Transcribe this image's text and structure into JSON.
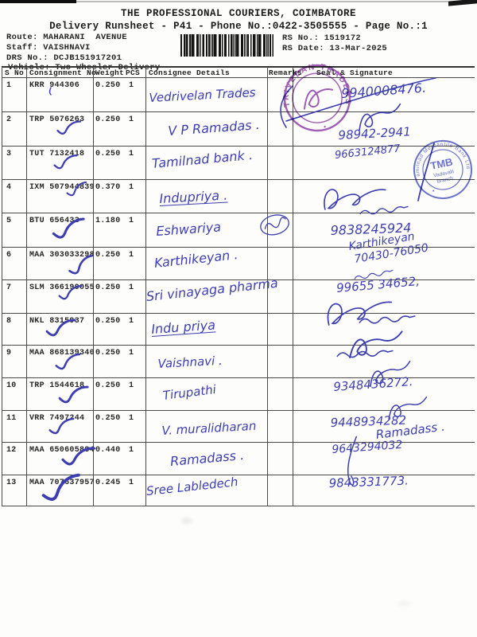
{
  "document": {
    "title": "THE PROFESSIONAL COURIERS, COIMBATORE",
    "subtitle": "Delivery Runsheet - P41 - Phone No.:0422-3505555 - Page No.:1",
    "info_left": [
      "Route: MAHARANI  AVENUE",
      "Staff: VAISHNAVI",
      "DRS No.: DCJB151917201",
      "Vehicle: Two Wheeler Delivery"
    ],
    "info_right": [
      "RS No.: 1519172",
      "RS Date: 13-Mar-2025"
    ]
  },
  "table": {
    "headers": {
      "sno": "S No",
      "consignment": "Consignment No",
      "weight": "Weight",
      "pcs": "PCS",
      "consignee": "Consignee Details",
      "remarks": "Remarks",
      "signature": "Seal & Signature"
    },
    "rows": [
      {
        "sno": "1",
        "consignment": "KRR 944306",
        "weight": "0.250",
        "pcs": "1",
        "consignee": "Vedrivelan Trades",
        "checked": false,
        "sig_lines": [
          "9940008476."
        ]
      },
      {
        "sno": "2",
        "consignment": "TRP 5076263",
        "weight": "0.250",
        "pcs": "1",
        "consignee": "V P Ramadas .",
        "checked": true,
        "sig_lines": [
          "98942-2941"
        ]
      },
      {
        "sno": "3",
        "consignment": "TUT 7132418",
        "weight": "0.250",
        "pcs": "1",
        "consignee": "Tamilnad bank .",
        "checked": true,
        "sig_lines": [
          "9663124877"
        ]
      },
      {
        "sno": "4",
        "consignment": "IXM 507944839",
        "weight": "0.370",
        "pcs": "1",
        "consignee": "Indupriya .",
        "checked": true,
        "sig_lines": []
      },
      {
        "sno": "5",
        "consignment": "BTU 656433",
        "weight": "1.180",
        "pcs": "1",
        "consignee": "Eshwariya",
        "checked": true,
        "sig_lines": [
          "9838245924"
        ]
      },
      {
        "sno": "6",
        "consignment": "MAA 303033298",
        "weight": "0.250",
        "pcs": "1",
        "consignee": "Karthikeyan .",
        "checked": true,
        "sig_lines": [
          "Karthikeyan",
          "70430-76050"
        ]
      },
      {
        "sno": "7",
        "consignment": "SLM 366199055",
        "weight": "0.250",
        "pcs": "1",
        "consignee": "Sri vinayaga pharma",
        "checked": true,
        "sig_lines": [
          "99655 34652,"
        ]
      },
      {
        "sno": "8",
        "consignment": "NKL 8315937",
        "weight": "0.250",
        "pcs": "1",
        "consignee": "Indu priya",
        "checked": true,
        "sig_lines": []
      },
      {
        "sno": "9",
        "consignment": "MAA 868139340",
        "weight": "0.250",
        "pcs": "1",
        "consignee": "Vaishnavi .",
        "checked": true,
        "sig_lines": []
      },
      {
        "sno": "10",
        "consignment": "TRP 1544618",
        "weight": "0.250",
        "pcs": "1",
        "consignee": "Tirupathi",
        "checked": true,
        "sig_lines": [
          "9348436272."
        ]
      },
      {
        "sno": "11",
        "consignment": "VRR 7497244",
        "weight": "0.250",
        "pcs": "1",
        "consignee": "V. muralidharan",
        "checked": true,
        "sig_lines": [
          "9448934282"
        ]
      },
      {
        "sno": "12",
        "consignment": "MAA 650605884",
        "weight": "0.440",
        "pcs": "1",
        "consignee": "Ramadass .",
        "checked": true,
        "sig_lines": [
          "Ramadass .",
          "9643294032"
        ]
      },
      {
        "sno": "13",
        "consignment": "MAA 707637957",
        "weight": "0.245",
        "pcs": "1",
        "consignee": "Sree Labledech",
        "checked": true,
        "sig_lines": [
          "9843331773."
        ]
      }
    ]
  },
  "stamps": {
    "trader_stamp": {
      "ring_text": "VETRIVELAN TRADERS",
      "star": "★"
    },
    "bank_stamp": {
      "ring_text": "Tamilnad Mercantile Bank Ltd",
      "center": "TMB",
      "line2": "Vadavalli",
      "line3": "Branch",
      "star": "★"
    }
  },
  "colors": {
    "handwriting": "#3d3eb0",
    "stamp_purple": "#8a3aa6",
    "stamp_blue": "#4a55c2"
  }
}
